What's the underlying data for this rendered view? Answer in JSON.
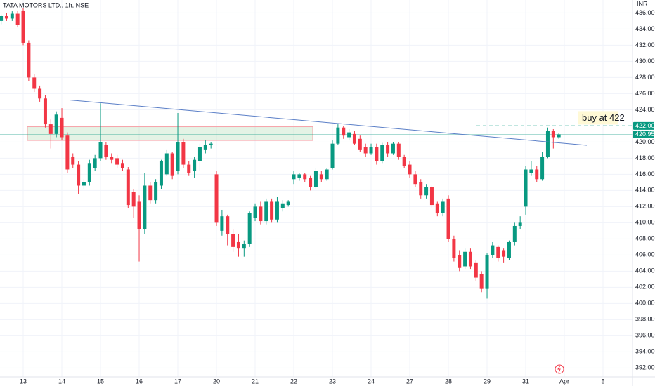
{
  "chart_data": {
    "type": "candlestick",
    "title": "TATA MOTORS LTD., 1h, NSE",
    "currency": "INR",
    "up_color": "#089981",
    "down_color": "#f23645",
    "grid": true,
    "ylim": [
      390.9,
      437.6
    ],
    "yticks": [
      {
        "value": 392,
        "label": "392.00"
      },
      {
        "value": 394,
        "label": "394.00"
      },
      {
        "value": 396,
        "label": "396.00"
      },
      {
        "value": 398,
        "label": "398.00"
      },
      {
        "value": 400,
        "label": "400.00"
      },
      {
        "value": 402,
        "label": "402.00"
      },
      {
        "value": 404,
        "label": "404.00"
      },
      {
        "value": 406,
        "label": "406.00"
      },
      {
        "value": 408,
        "label": "408.00"
      },
      {
        "value": 410,
        "label": "410.00"
      },
      {
        "value": 412,
        "label": "412.00"
      },
      {
        "value": 414,
        "label": "414.00"
      },
      {
        "value": 416,
        "label": "416.00"
      },
      {
        "value": 418,
        "label": "418.00"
      },
      {
        "value": 420,
        "label": "420.00"
      },
      {
        "value": 424,
        "label": "424.00"
      },
      {
        "value": 426,
        "label": "426.00"
      },
      {
        "value": 428,
        "label": "428.00"
      },
      {
        "value": 430,
        "label": "430.00"
      },
      {
        "value": 432,
        "label": "432.00"
      },
      {
        "value": 434,
        "label": "434.00"
      },
      {
        "value": 436,
        "label": "436.00"
      }
    ],
    "categories": [
      null,
      null,
      null,
      null,
      "13",
      null,
      null,
      null,
      null,
      null,
      null,
      "14",
      null,
      null,
      null,
      null,
      null,
      null,
      "15",
      null,
      null,
      null,
      null,
      null,
      null,
      "16",
      null,
      null,
      null,
      null,
      null,
      null,
      "17",
      null,
      null,
      null,
      null,
      null,
      null,
      "20",
      null,
      null,
      null,
      null,
      null,
      null,
      "21",
      null,
      null,
      null,
      null,
      null,
      null,
      "22",
      null,
      null,
      null,
      null,
      null,
      null,
      "23",
      null,
      null,
      null,
      null,
      null,
      null,
      "24",
      null,
      null,
      null,
      null,
      null,
      null,
      "27",
      null,
      null,
      null,
      null,
      null,
      null,
      "28",
      null,
      null,
      null,
      null,
      null,
      null,
      "29",
      null,
      null,
      null,
      null,
      null,
      null,
      "31",
      null,
      null,
      null,
      null,
      null,
      null,
      "Apr",
      null,
      null,
      null,
      null,
      null,
      null,
      "5"
    ],
    "ohlc": [
      [
        435.0,
        435.8,
        434.6,
        435.6
      ],
      [
        435.6,
        436.0,
        435.0,
        435.3
      ],
      [
        435.3,
        436.2,
        435.0,
        435.9
      ],
      [
        435.9,
        436.3,
        434.2,
        434.5
      ],
      [
        436.3,
        436.6,
        432.0,
        432.3
      ],
      [
        432.3,
        432.6,
        427.6,
        428.0
      ],
      [
        428.0,
        428.4,
        426.2,
        426.6
      ],
      [
        426.6,
        427.0,
        425.0,
        425.4
      ],
      [
        425.4,
        425.8,
        421.8,
        422.2
      ],
      [
        422.2,
        422.8,
        419.2,
        421.0
      ],
      [
        421.0,
        423.8,
        420.6,
        423.4
      ],
      [
        423.0,
        424.2,
        420.2,
        420.6
      ],
      [
        420.8,
        421.2,
        416.2,
        416.6
      ],
      [
        418.2,
        418.6,
        416.8,
        417.2
      ],
      [
        417.2,
        417.6,
        413.6,
        414.6
      ],
      [
        414.6,
        415.4,
        414.2,
        415.0
      ],
      [
        415.0,
        417.8,
        414.6,
        417.4
      ],
      [
        416.8,
        418.4,
        416.4,
        418.0
      ],
      [
        418.0,
        424.8,
        417.6,
        420.0
      ],
      [
        419.6,
        420.0,
        417.8,
        418.2
      ],
      [
        418.2,
        418.6,
        417.4,
        417.8
      ],
      [
        418.0,
        418.4,
        416.8,
        417.2
      ],
      [
        417.4,
        417.8,
        416.4,
        416.8
      ],
      [
        416.6,
        416.9,
        411.8,
        412.2
      ],
      [
        413.8,
        414.2,
        410.6,
        412.0
      ],
      [
        412.6,
        413.4,
        405.2,
        409.2
      ],
      [
        409.2,
        416.2,
        408.6,
        414.6
      ],
      [
        414.6,
        415.0,
        412.4,
        412.8
      ],
      [
        412.8,
        415.4,
        412.4,
        415.0
      ],
      [
        414.6,
        417.8,
        414.2,
        417.6
      ],
      [
        416.0,
        419.0,
        415.8,
        418.6
      ],
      [
        418.6,
        418.8,
        415.4,
        415.8
      ],
      [
        416.4,
        423.6,
        416.0,
        420.0
      ],
      [
        420.0,
        420.4,
        416.8,
        417.2
      ],
      [
        417.2,
        417.6,
        415.8,
        416.2
      ],
      [
        416.4,
        418.2,
        415.6,
        417.8
      ],
      [
        417.6,
        419.8,
        416.4,
        419.4
      ],
      [
        419.0,
        420.2,
        418.6,
        419.6
      ],
      [
        419.6,
        420.0,
        419.2,
        419.8
      ],
      [
        416.0,
        416.4,
        409.6,
        410.0
      ],
      [
        409.0,
        411.6,
        408.4,
        410.8
      ],
      [
        410.8,
        411.0,
        407.2,
        408.6
      ],
      [
        408.6,
        409.2,
        406.4,
        407.0
      ],
      [
        407.6,
        408.6,
        405.8,
        406.8
      ],
      [
        406.8,
        407.8,
        405.8,
        407.4
      ],
      [
        407.4,
        411.4,
        407.0,
        411.2
      ],
      [
        410.6,
        412.4,
        410.2,
        412.0
      ],
      [
        412.0,
        412.6,
        409.8,
        410.2
      ],
      [
        410.2,
        413.0,
        409.8,
        412.6
      ],
      [
        412.6,
        413.0,
        410.0,
        410.4
      ],
      [
        410.4,
        413.2,
        410.0,
        412.6
      ],
      [
        411.8,
        412.8,
        411.4,
        412.4
      ],
      [
        412.2,
        412.8,
        412.0,
        412.6
      ],
      [
        415.4,
        416.4,
        414.8,
        416.0
      ],
      [
        415.6,
        416.2,
        415.2,
        416.0
      ],
      [
        416.0,
        416.2,
        415.0,
        415.4
      ],
      [
        415.6,
        415.8,
        414.0,
        414.4
      ],
      [
        414.4,
        416.8,
        414.2,
        416.4
      ],
      [
        416.0,
        416.4,
        415.0,
        415.4
      ],
      [
        415.4,
        416.8,
        415.2,
        416.6
      ],
      [
        416.8,
        420.2,
        416.6,
        419.8
      ],
      [
        419.8,
        422.2,
        419.6,
        421.8
      ],
      [
        421.8,
        422.0,
        420.4,
        420.8
      ],
      [
        420.6,
        421.6,
        420.2,
        421.2
      ],
      [
        421.0,
        421.4,
        419.6,
        419.8
      ],
      [
        420.4,
        420.8,
        418.8,
        419.0
      ],
      [
        419.4,
        419.8,
        418.2,
        418.6
      ],
      [
        418.6,
        419.8,
        418.4,
        419.4
      ],
      [
        419.4,
        419.8,
        417.2,
        417.6
      ],
      [
        417.6,
        419.9,
        417.4,
        419.6
      ],
      [
        419.6,
        420.0,
        418.2,
        418.6
      ],
      [
        418.6,
        420.0,
        418.4,
        419.8
      ],
      [
        419.8,
        420.0,
        417.8,
        418.2
      ],
      [
        418.2,
        418.4,
        416.8,
        417.0
      ],
      [
        417.2,
        417.6,
        415.6,
        416.0
      ],
      [
        416.0,
        416.4,
        414.4,
        414.8
      ],
      [
        415.0,
        415.4,
        413.0,
        413.4
      ],
      [
        413.4,
        414.8,
        413.0,
        414.4
      ],
      [
        414.4,
        414.6,
        411.8,
        412.2
      ],
      [
        412.4,
        412.6,
        410.8,
        411.2
      ],
      [
        411.2,
        413.0,
        410.8,
        412.6
      ],
      [
        413.0,
        413.4,
        407.6,
        408.0
      ],
      [
        408.0,
        408.4,
        405.2,
        405.6
      ],
      [
        406.0,
        406.6,
        404.0,
        404.4
      ],
      [
        404.6,
        406.8,
        404.2,
        406.4
      ],
      [
        406.4,
        406.8,
        404.2,
        404.6
      ],
      [
        405.0,
        405.4,
        402.8,
        403.2
      ],
      [
        403.6,
        404.0,
        401.4,
        401.8
      ],
      [
        401.8,
        406.2,
        400.6,
        406.0
      ],
      [
        406.0,
        407.6,
        405.6,
        407.2
      ],
      [
        407.0,
        407.2,
        405.2,
        405.6
      ],
      [
        406.6,
        406.8,
        405.0,
        405.8
      ],
      [
        405.6,
        407.8,
        405.4,
        407.6
      ],
      [
        407.6,
        410.0,
        407.2,
        409.6
      ],
      [
        409.6,
        410.8,
        409.2,
        410.0
      ],
      [
        412.0,
        417.0,
        411.0,
        416.6
      ],
      [
        416.2,
        417.6,
        415.8,
        416.6
      ],
      [
        416.6,
        417.0,
        415.0,
        415.4
      ],
      [
        415.4,
        418.8,
        415.2,
        418.2
      ],
      [
        418.2,
        421.8,
        418.0,
        421.4
      ],
      [
        421.4,
        421.6,
        419.2,
        420.6
      ],
      [
        420.6,
        421.1,
        420.4,
        420.95
      ],
      null,
      null,
      null,
      null,
      null,
      null,
      null,
      null
    ],
    "zone": [
      420.2,
      421.9
    ],
    "trendline": [
      425.2,
      419.6
    ],
    "buy_line": {
      "value": 422,
      "label": "422.00"
    },
    "last_price": {
      "value": 420.95,
      "label": "420.95"
    },
    "annotation": "buy at 422"
  }
}
